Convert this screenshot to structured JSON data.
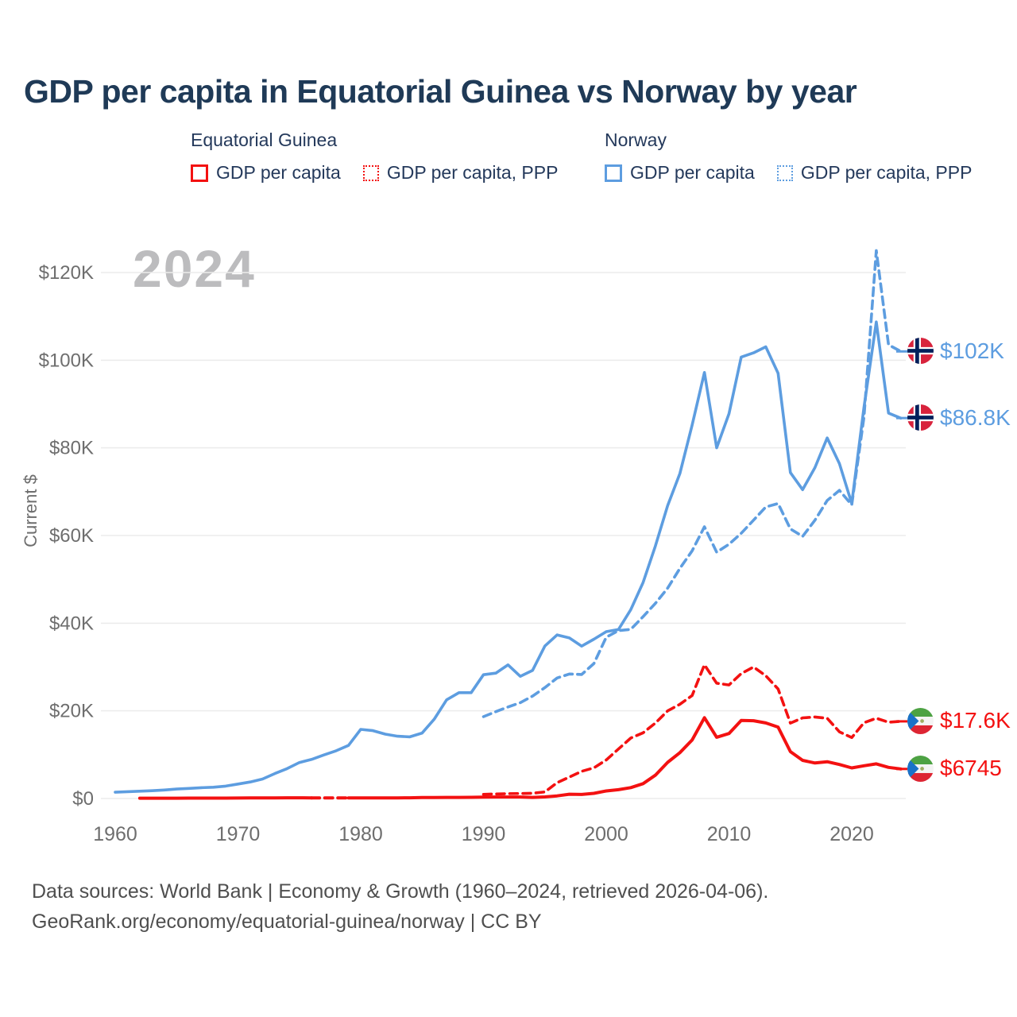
{
  "title": "GDP per capita in Equatorial Guinea vs Norway by year",
  "watermark": "2024",
  "legend": {
    "groups": [
      {
        "header": "Equatorial Guinea",
        "items": [
          {
            "label": "GDP per capita",
            "style": "solid",
            "color": "#f31111"
          },
          {
            "label": "GDP per capita, PPP",
            "style": "dotted",
            "color": "#f31111"
          }
        ]
      },
      {
        "header": "Norway",
        "items": [
          {
            "label": "GDP per capita",
            "style": "solid",
            "color": "#5d9de0"
          },
          {
            "label": "GDP per capita, PPP",
            "style": "dotted",
            "color": "#5d9de0"
          }
        ]
      }
    ]
  },
  "chart_data": {
    "type": "line",
    "title": "GDP per capita in Equatorial Guinea vs Norway by year",
    "xlabel": "",
    "ylabel": "Current $",
    "xlim": [
      1960,
      2024
    ],
    "ylim": [
      0,
      128000
    ],
    "grid": "horizontal",
    "legend_position": "top",
    "x_ticks": [
      1960,
      1970,
      1980,
      1990,
      2000,
      2010,
      2020
    ],
    "y_ticks": [
      {
        "value": 0,
        "label": "$0"
      },
      {
        "value": 20000,
        "label": "$20K"
      },
      {
        "value": 40000,
        "label": "$40K"
      },
      {
        "value": 60000,
        "label": "$60K"
      },
      {
        "value": 80000,
        "label": "$80K"
      },
      {
        "value": 100000,
        "label": "$100K"
      },
      {
        "value": 120000,
        "label": "$120K"
      }
    ],
    "series": [
      {
        "name": "Norway GDP per capita",
        "country": "Norway",
        "color": "#5d9de0",
        "line_style": "solid",
        "start_year": 1960,
        "values": [
          1441,
          1559,
          1667,
          1775,
          1937,
          2165,
          2311,
          2460,
          2577,
          2827,
          3306,
          3766,
          4438,
          5689,
          6811,
          8204,
          8927,
          9936,
          10901,
          12110,
          15772,
          15484,
          14690,
          14207,
          14075,
          14932,
          18139,
          22506,
          24151,
          24141,
          28243,
          28599,
          30483,
          27880,
          29240,
          34790,
          37321,
          36634,
          34774,
          36340,
          38067,
          38554,
          43084,
          49288,
          57570,
          66810,
          74148,
          85171,
          97191,
          80017,
          87770,
          100711,
          101668,
          103059,
          97019,
          74355,
          70461,
          75497,
          82268,
          76407,
          67326,
          89242,
          108729,
          87925,
          86776
        ]
      },
      {
        "name": "Norway GDP per capita, PPP",
        "country": "Norway",
        "color": "#5d9de0",
        "line_style": "dashed",
        "start_year": 1990,
        "values": [
          18670,
          19820,
          20890,
          21870,
          23370,
          25300,
          27500,
          28400,
          28300,
          30800,
          36800,
          38300,
          38600,
          41500,
          44500,
          48000,
          52500,
          56500,
          62000,
          56200,
          58000,
          60500,
          63500,
          66500,
          67300,
          61500,
          59800,
          63500,
          68000,
          70300,
          67000,
          87000,
          125000,
          103500,
          102000
        ]
      },
      {
        "name": "Equatorial Guinea GDP per capita, PPP",
        "country": "Equatorial Guinea",
        "color": "#f31111",
        "line_style": "dashed",
        "start_year": 1990,
        "values": [
          950,
          1030,
          1100,
          1140,
          1200,
          1500,
          3600,
          4900,
          6200,
          7000,
          8800,
          11300,
          13800,
          15000,
          17200,
          20000,
          21500,
          23500,
          30500,
          26300,
          25900,
          28500,
          30000,
          28000,
          25000,
          17200,
          18400,
          18600,
          18300,
          15200,
          13900,
          17300,
          18300,
          17400,
          17600
        ]
      },
      {
        "name": "Equatorial Guinea GDP per capita",
        "country": "Equatorial Guinea",
        "color": "#f31111",
        "line_style": "solid",
        "dashed_gap": [
          1976,
          1979
        ],
        "start_year": 1962,
        "values": [
          70,
          72,
          75,
          78,
          82,
          87,
          95,
          92,
          108,
          118,
          128,
          140,
          158,
          160,
          152,
          145,
          138,
          130,
          128,
          135,
          142,
          148,
          155,
          230,
          240,
          250,
          262,
          280,
          330,
          340,
          352,
          345,
          250,
          370,
          590,
          970,
          920,
          1170,
          1730,
          2020,
          2480,
          3390,
          5320,
          8240,
          10460,
          13350,
          18430,
          13980,
          14820,
          17800,
          17750,
          17240,
          16290,
          10690,
          8700,
          8100,
          8400,
          7750,
          6980,
          7460,
          7900,
          7100,
          6745
        ]
      }
    ],
    "end_labels": [
      {
        "series": "Norway GDP per capita, PPP",
        "text": "$102K",
        "value": 102000,
        "flag": "norway",
        "color": "#5d9de0"
      },
      {
        "series": "Norway GDP per capita",
        "text": "$86.8K",
        "value": 86800,
        "flag": "norway",
        "color": "#5d9de0"
      },
      {
        "series": "Equatorial Guinea GDP per capita, PPP",
        "text": "$17.6K",
        "value": 17600,
        "flag": "equatorial-guinea",
        "color": "#f31111"
      },
      {
        "series": "Equatorial Guinea GDP per capita",
        "text": "$6745",
        "value": 6745,
        "flag": "equatorial-guinea",
        "color": "#f31111"
      }
    ]
  },
  "footer": {
    "line1": "Data sources: World Bank | Economy & Growth (1960–2024, retrieved 2026-04-06).",
    "line2": "GeoRank.org/economy/equatorial-guinea/norway | CC BY"
  }
}
